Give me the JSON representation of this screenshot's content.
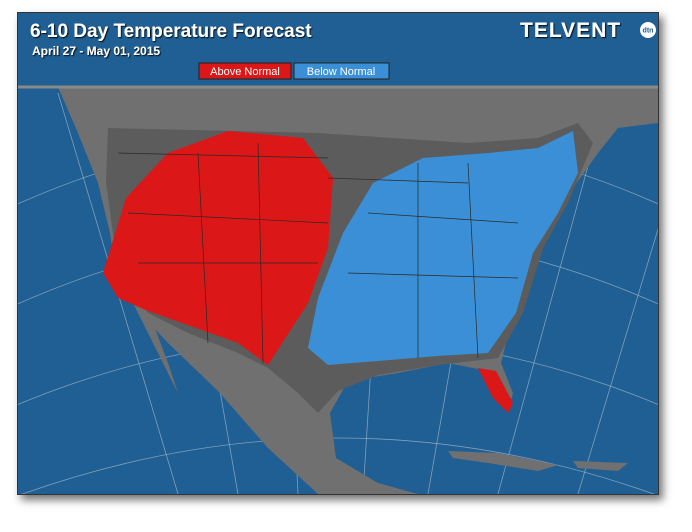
{
  "header": {
    "title": "6-10 Day Temperature Forecast",
    "subtitle": "April 27 - May 01, 2015"
  },
  "legend": {
    "items": [
      "Above Normal",
      "Below Normal"
    ]
  },
  "logo": {
    "brand": "TELVENT",
    "badge": "dtn"
  }
}
